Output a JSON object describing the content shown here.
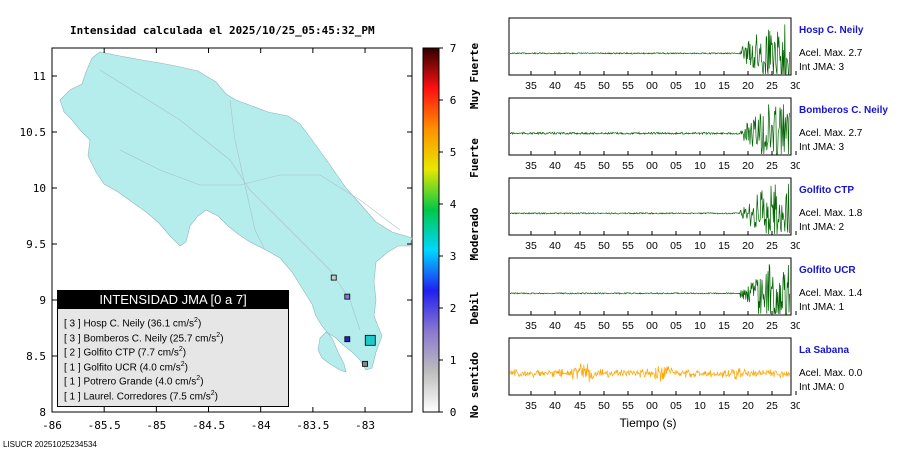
{
  "title": "Intensidad calculada el 2025/10/25_05:45:32_PM",
  "footer": "LISUCR 20251025234534",
  "map": {
    "x_ticks": [
      "-86",
      "-85.5",
      "-85",
      "-84.5",
      "-84",
      "-83.5",
      "-83"
    ],
    "x_values": [
      -86,
      -85.5,
      -85,
      -84.5,
      -84,
      -83.5,
      -83
    ],
    "y_ticks": [
      "11",
      "10.5",
      "10",
      "9.5",
      "9",
      "8.5",
      "8"
    ],
    "y_values": [
      11,
      10.5,
      10,
      9.5,
      9,
      8.5,
      8
    ],
    "xlim": [
      -86,
      -82.55
    ],
    "ylim": [
      8,
      11.25
    ],
    "land_color": "#b5ecec",
    "stations": [
      {
        "lon": -83.3,
        "lat": 9.2,
        "color": "#c8c8c8"
      },
      {
        "lon": -83.17,
        "lat": 9.03,
        "color": "#8a78d0"
      },
      {
        "lon": -83.17,
        "lat": 8.65,
        "color": "#2020d0"
      },
      {
        "lon": -82.95,
        "lat": 8.64,
        "color": "#20c8c8"
      },
      {
        "lon": -83.0,
        "lat": 8.43,
        "color": "#888888"
      }
    ]
  },
  "colorbar": {
    "ticks": [
      "0",
      "1",
      "2",
      "3",
      "4",
      "5",
      "6",
      "7"
    ],
    "labels": [
      "No sentido",
      "Debil",
      "Moderado",
      "Fuerte",
      "Muy Fuerte"
    ],
    "colors": [
      "#ffffff",
      "#bdbdbd",
      "#8a78d0",
      "#2020f0",
      "#00d8ff",
      "#00c848",
      "#e8e800",
      "#ff9000",
      "#ff1010",
      "#300000"
    ]
  },
  "legend": {
    "header": "INTENSIDAD JMA [0 a 7]",
    "rows": [
      {
        "text": "[ 3 ]  Hosp C. Neily (36.1 cm/s",
        "sup": "2",
        "close": ")"
      },
      {
        "text": "[ 3 ]  Bomberos C. Neily (25.7 cm/s",
        "sup": "2",
        "close": ")"
      },
      {
        "text": "[ 2 ]  Golfito CTP (7.7 cm/s",
        "sup": "2",
        "close": ")"
      },
      {
        "text": "[ 1 ]  Golfito UCR (4.0 cm/s",
        "sup": "2",
        "close": ")"
      },
      {
        "text": "[ 1 ]  Potrero Grande (4.0 cm/s",
        "sup": "2",
        "close": ")"
      },
      {
        "text": "[ 1 ]  Laurel. Corredores (7.5 cm/s",
        "sup": "2",
        "close": ")"
      }
    ]
  },
  "waveform_axis": {
    "ticks": [
      "35",
      "40",
      "45",
      "50",
      "55",
      "00",
      "05",
      "10",
      "15",
      "20",
      "25",
      "30"
    ],
    "xlabel": "Tiempo (s)"
  },
  "chart_data": {
    "type": "line",
    "x_ticks": [
      "35",
      "40",
      "45",
      "50",
      "55",
      "00",
      "05",
      "10",
      "15",
      "20",
      "25",
      "30"
    ],
    "xlabel": "Tiempo (s)",
    "series": [
      {
        "name": "Hosp C. Neily",
        "acel_label": "Acel. Max. 2.7",
        "int_label": "Int JMA: 3",
        "color": "#006400",
        "onset": 20,
        "level": 1.0,
        "pre": 0.02
      },
      {
        "name": "Bomberos C. Neily",
        "acel_label": "Acel. Max. 2.7",
        "int_label": "Int JMA: 3",
        "color": "#006400",
        "onset": 20,
        "level": 0.95,
        "pre": 0.03
      },
      {
        "name": "Golfito CTP",
        "acel_label": "Acel. Max. 1.8",
        "int_label": "Int JMA: 2",
        "color": "#006400",
        "onset": 20.5,
        "level": 0.95,
        "pre": 0.02
      },
      {
        "name": "Golfito UCR",
        "acel_label": "Acel. Max. 1.4",
        "int_label": "Int JMA: 1",
        "color": "#006400",
        "onset": 20,
        "level": 0.95,
        "pre": 0.02
      },
      {
        "name": "La Sabana",
        "acel_label": "Acel. Max. 0.0",
        "int_label": "Int JMA: 0",
        "color": "#ffa500",
        "onset": 0,
        "level": 0.45,
        "pre": 0.45
      }
    ]
  }
}
